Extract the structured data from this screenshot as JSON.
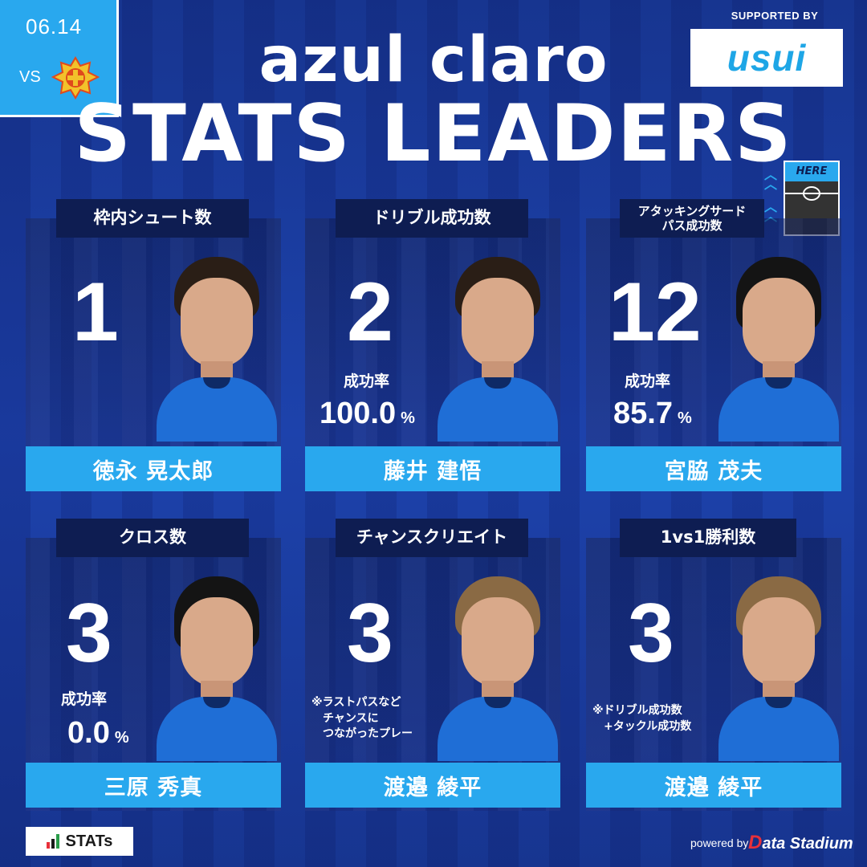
{
  "match": {
    "date": "06.14",
    "vs": "VS"
  },
  "header": {
    "title_line1": "azul claro",
    "title_line2": "STATS LEADERS"
  },
  "sponsor": {
    "label": "SUPPORTED BY",
    "logo_text": "usui"
  },
  "here_badge": {
    "label": "HERE"
  },
  "cards": [
    {
      "category": "枠内シュート数",
      "value": "1",
      "name": "徳永 晃太郎"
    },
    {
      "category": "ドリブル成功数",
      "value": "2",
      "rate_label": "成功率",
      "rate": "100.0",
      "pct": "%",
      "name": "藤井 建悟"
    },
    {
      "category_line1": "アタッキングサード",
      "category_line2": "パス成功数",
      "value": "12",
      "rate_label": "成功率",
      "rate": "85.7",
      "pct": "%",
      "name": "宮脇 茂夫"
    },
    {
      "category": "クロス数",
      "value": "3",
      "rate_label": "成功率",
      "rate": "0.0",
      "pct": "%",
      "name": "三原 秀真"
    },
    {
      "category": "チャンスクリエイト",
      "value": "3",
      "note_line1": "※ラストパスなど",
      "note_line2": "チャンスに",
      "note_line3": "つながったプレー",
      "name": "渡邉 綾平"
    },
    {
      "category": "1vs1勝利数",
      "value": "3",
      "note_line1": "※ドリブル成功数",
      "note_line2": "+タックル成功数",
      "name": "渡邉 綾平"
    }
  ],
  "footer": {
    "stats_label": "STATs",
    "powered_by": "powered by",
    "data_stadium": "Data Stadium",
    "data_stadium_d": "D",
    "data_stadium_rest": "ata Stadium"
  },
  "colors": {
    "accent": "#29a8ee",
    "navy": "#0e1d52",
    "background": "#1a3a9c"
  }
}
